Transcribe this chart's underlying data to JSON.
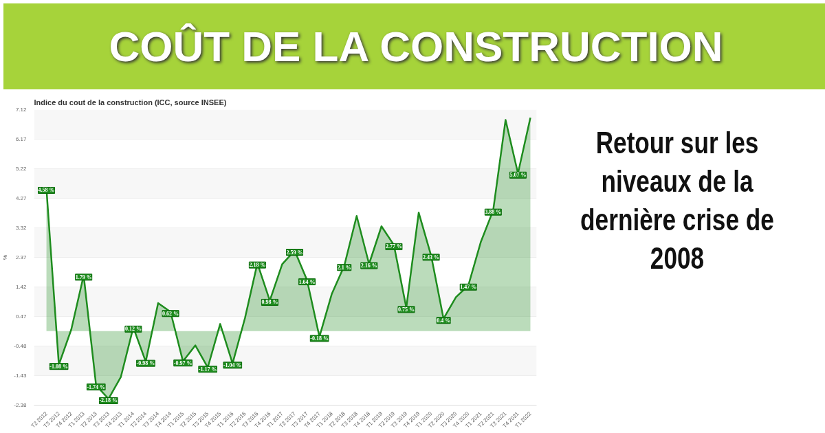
{
  "chart_data": {
    "type": "area",
    "title": "COÛT DE LA CONSTRUCTION",
    "subtitle": "Indice du cout de la construction (ICC, source INSEE)",
    "ylabel": "%",
    "annotations": [
      "Retour sur les niveaux de la dernière crise de 2008"
    ],
    "categories": [
      "T2 2012",
      "T3 2012",
      "T4 2012",
      "T1 2013",
      "T2 2013",
      "T3 2013",
      "T4 2013",
      "T1 2014",
      "T2 2014",
      "T3 2014",
      "T4 2014",
      "T1 2015",
      "T2 2015",
      "T3 2015",
      "T4 2015",
      "T1 2016",
      "T2 2016",
      "T3 2016",
      "T4 2016",
      "T1 2017",
      "T2 2017",
      "T3 2017",
      "T4 2017",
      "T1 2018",
      "T2 2018",
      "T3 2018",
      "T4 2018",
      "T1 2019",
      "T2 2019",
      "T3 2019",
      "T4 2019",
      "T1 2020",
      "T2 2020",
      "T3 2020",
      "T4 2020",
      "T1 2021",
      "T2 2021",
      "T3 2021",
      "T4 2021",
      "T1 2022"
    ],
    "series": [
      {
        "color": "#1e8c1e",
        "values": [
          4.58,
          -1.08,
          0.05,
          1.79,
          -1.74,
          -2.18,
          -1.47,
          0.12,
          -0.98,
          0.9,
          0.62,
          -0.97,
          -0.46,
          -1.17,
          0.23,
          -1.04,
          0.42,
          2.18,
          0.98,
          2.15,
          2.59,
          1.64,
          -0.18,
          1.2,
          2.1,
          3.7,
          2.16,
          3.37,
          2.77,
          0.75,
          3.81,
          2.43,
          0.4,
          1.09,
          1.47,
          2.86,
          3.88,
          6.79,
          5.07,
          6.86
        ],
        "value_labels": [
          "4.58 %",
          "-1.08 %",
          null,
          "1.79 %",
          "-1.74 %",
          "-2.18 %",
          null,
          "0.12 %",
          "-0.98 %",
          null,
          "0.62 %",
          "-0.97 %",
          null,
          "-1.17 %",
          null,
          "-1.04 %",
          null,
          "2.18 %",
          "0.98 %",
          null,
          "2.59 %",
          "1.64 %",
          "-0.18 %",
          null,
          "2.1 %",
          null,
          "2.16 %",
          null,
          "2.77 %",
          "0.75 %",
          null,
          "2.43 %",
          "0.4 %",
          null,
          "1.47 %",
          null,
          "3.88 %",
          null,
          "5.07 %",
          null
        ]
      }
    ],
    "ylim": [
      -2.38,
      7.12
    ],
    "yticks": [
      -2.38,
      -1.43,
      -0.48,
      0.47,
      1.42,
      2.37,
      3.32,
      4.27,
      5.22,
      6.17,
      7.12
    ],
    "grid": "y",
    "marker": "none",
    "line_style": "solid"
  }
}
